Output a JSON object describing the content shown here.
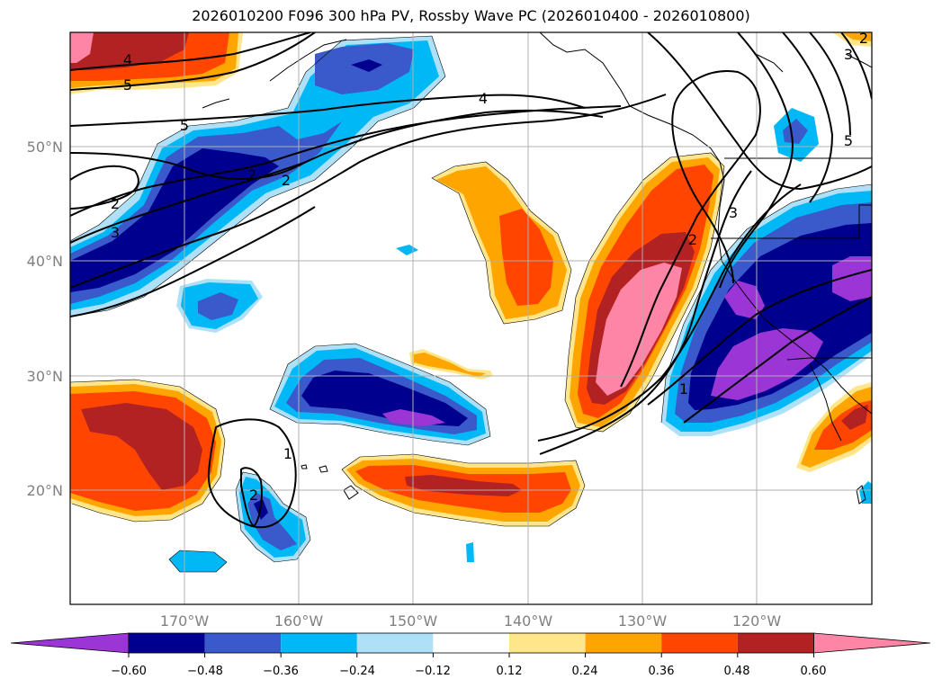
{
  "title": "2026010200 F096 300 hPa PV, Rossby Wave PC (2026010400 - 2026010800)",
  "lat_labels": [
    "50°N",
    "40°N",
    "30°N",
    "20°N"
  ],
  "lon_labels": [
    "170°W",
    "160°W",
    "150°W",
    "140°W",
    "130°W",
    "120°W"
  ],
  "colorbar": {
    "tick_labels": [
      "−0.60",
      "−0.48",
      "−0.36",
      "−0.24",
      "−0.12",
      "0.12",
      "0.24",
      "0.36",
      "0.48",
      "0.60"
    ],
    "colors": [
      "#9b35d6",
      "#00008f",
      "#3a5acc",
      "#00b8f5",
      "#aee1f7",
      "#ffffff",
      "#ffe68a",
      "#ffa500",
      "#ff4500",
      "#b22222",
      "#ff85a6"
    ]
  },
  "contour_labels": [
    "4",
    "5",
    "5",
    "4",
    "2",
    "2",
    "2",
    "3",
    "2",
    "3",
    "5",
    "3",
    "2",
    "1",
    "1",
    "2"
  ],
  "palette": {
    "purple": "#9b35d6",
    "navy": "#00008f",
    "royal": "#3a5acc",
    "sky": "#00b8f5",
    "pale": "#aee1f7",
    "yellow": "#ffe68a",
    "orange": "#ffa500",
    "red": "#ff4500",
    "brick": "#b22222",
    "pink": "#ff85a6"
  }
}
